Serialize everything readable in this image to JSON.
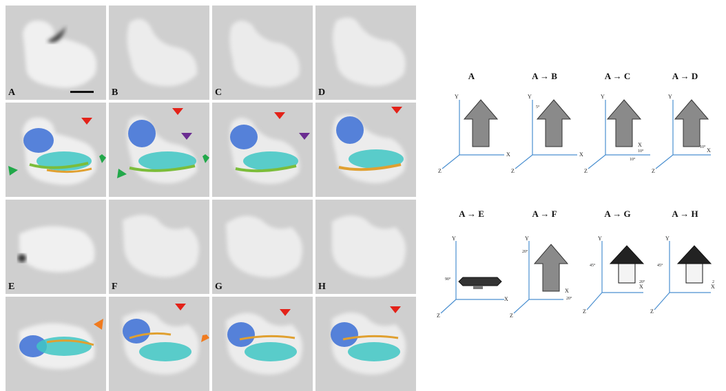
{
  "panels": [
    {
      "letter": "A",
      "row": 0,
      "col": 0,
      "overlay": false
    },
    {
      "letter": "B",
      "row": 0,
      "col": 1,
      "overlay": false
    },
    {
      "letter": "C",
      "row": 0,
      "col": 2,
      "overlay": false
    },
    {
      "letter": "D",
      "row": 0,
      "col": 3,
      "overlay": false
    },
    {
      "letter": "",
      "row": 1,
      "col": 0,
      "overlay": true
    },
    {
      "letter": "",
      "row": 1,
      "col": 1,
      "overlay": true
    },
    {
      "letter": "",
      "row": 1,
      "col": 2,
      "overlay": true
    },
    {
      "letter": "",
      "row": 1,
      "col": 3,
      "overlay": true
    },
    {
      "letter": "E",
      "row": 2,
      "col": 0,
      "overlay": false
    },
    {
      "letter": "F",
      "row": 2,
      "col": 1,
      "overlay": false
    },
    {
      "letter": "G",
      "row": 2,
      "col": 2,
      "overlay": false
    },
    {
      "letter": "H",
      "row": 2,
      "col": 3,
      "overlay": false
    },
    {
      "letter": "",
      "row": 3,
      "col": 0,
      "overlay": true
    },
    {
      "letter": "",
      "row": 3,
      "col": 1,
      "overlay": true
    },
    {
      "letter": "",
      "row": 3,
      "col": 2,
      "overlay": true
    },
    {
      "letter": "",
      "row": 3,
      "col": 3,
      "overlay": true
    }
  ],
  "marker_colors": {
    "red": "#e32219",
    "purple": "#6a2c91",
    "green": "#22a84a",
    "orange": "#f07b1f"
  },
  "axis_color": "#4a8fd0",
  "diagrams": [
    {
      "title": "A",
      "x_label": "X",
      "y_label": "Y",
      "z_label": "Z",
      "angles": [],
      "arrow": "up"
    },
    {
      "title": "A → B",
      "x_label": "X",
      "y_label": "Y",
      "z_label": "Z",
      "angles": [
        "5°"
      ],
      "arrow": "up"
    },
    {
      "title": "A → C",
      "x_label": "X",
      "y_label": "Y",
      "z_label": "Z",
      "angles": [
        "10°",
        "10°"
      ],
      "arrow": "up"
    },
    {
      "title": "A → D",
      "x_label": "X",
      "y_label": "Y",
      "z_label": "Z",
      "angles": [
        "10°"
      ],
      "arrow": "up"
    },
    {
      "title": "A → E",
      "x_label": "X",
      "y_label": "Y",
      "z_label": "Z",
      "angles": [
        "90°"
      ],
      "arrow": "flat"
    },
    {
      "title": "A → F",
      "x_label": "X",
      "y_label": "Y",
      "z_label": "Z",
      "angles": [
        "20°",
        "20°"
      ],
      "arrow": "tilted"
    },
    {
      "title": "A → G",
      "x_label": "X",
      "y_label": "Y",
      "z_label": "Z",
      "angles": [
        "45°",
        "20°"
      ],
      "arrow": "box"
    },
    {
      "title": "A → H",
      "x_label": "X",
      "y_label": "Y",
      "z_label": "Z",
      "angles": [
        "45°",
        "2"
      ],
      "arrow": "box"
    }
  ]
}
